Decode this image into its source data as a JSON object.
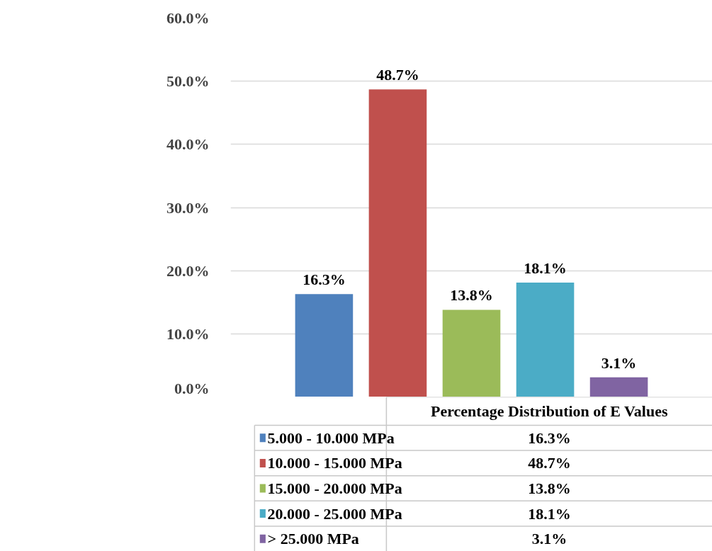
{
  "chart_data": {
    "type": "bar",
    "categories": [
      "Percentage Distribution of E Values"
    ],
    "series": [
      {
        "name": "5.000 - 10.000 MPa",
        "color": "#4f81bd",
        "values": [
          16.3
        ],
        "value_labels": [
          "16.3%"
        ]
      },
      {
        "name": "10.000 - 15.000 MPa",
        "color": "#c0504d",
        "values": [
          48.7
        ],
        "value_labels": [
          "48.7%"
        ]
      },
      {
        "name": "15.000 - 20.000 MPa",
        "color": "#9bbb59",
        "values": [
          13.8
        ],
        "value_labels": [
          "13.8%"
        ]
      },
      {
        "name": "20.000 - 25.000 MPa",
        "color": "#4bacc6",
        "values": [
          18.1
        ],
        "value_labels": [
          "18.1%"
        ]
      },
      {
        "name": "> 25.000 MPa",
        "color": "#8064a2",
        "values": [
          3.1
        ],
        "value_labels": [
          "3.1%"
        ]
      }
    ],
    "ylim": [
      0,
      60
    ],
    "yticks": [
      {
        "value": 0,
        "label": "0.0%"
      },
      {
        "value": 10,
        "label": "10.0%"
      },
      {
        "value": 20,
        "label": "20.0%"
      },
      {
        "value": 30,
        "label": "30.0%"
      },
      {
        "value": 40,
        "label": "40.0%"
      },
      {
        "value": 50,
        "label": "50.0%"
      },
      {
        "value": 60,
        "label": "60.0%"
      }
    ],
    "grid": "y",
    "legend": "bottom"
  }
}
